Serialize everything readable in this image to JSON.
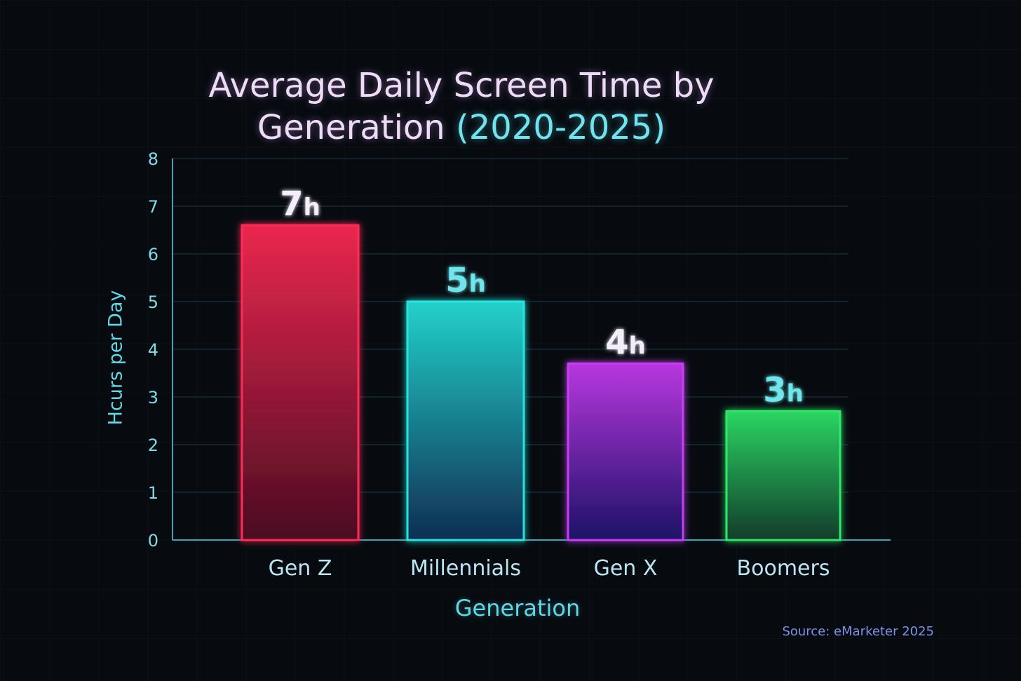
{
  "chart_data": {
    "type": "bar",
    "title": "Average Daily Screen Time by",
    "title_line2": "Generation",
    "title_period": "(2020-2025)",
    "xlabel": "Generation",
    "ylabel": "Hcurs per Day",
    "categories": [
      "Gen Z",
      "Millennials",
      "Gen X",
      "Boomers"
    ],
    "values": [
      6.6,
      5.0,
      3.7,
      2.7
    ],
    "value_labels": [
      "7",
      "5",
      "4",
      "3"
    ],
    "value_unit": "h",
    "ylim": [
      0,
      8
    ],
    "yticks": [
      "0",
      "1",
      "2",
      "3",
      "4",
      "5",
      "6",
      "7",
      "8"
    ],
    "grid": true,
    "legend": "none",
    "colors": [
      "#ff2a55",
      "#25e3dc",
      "#c73cf2",
      "#2fe86a"
    ],
    "source": "Source: eMarketer 2025"
  }
}
